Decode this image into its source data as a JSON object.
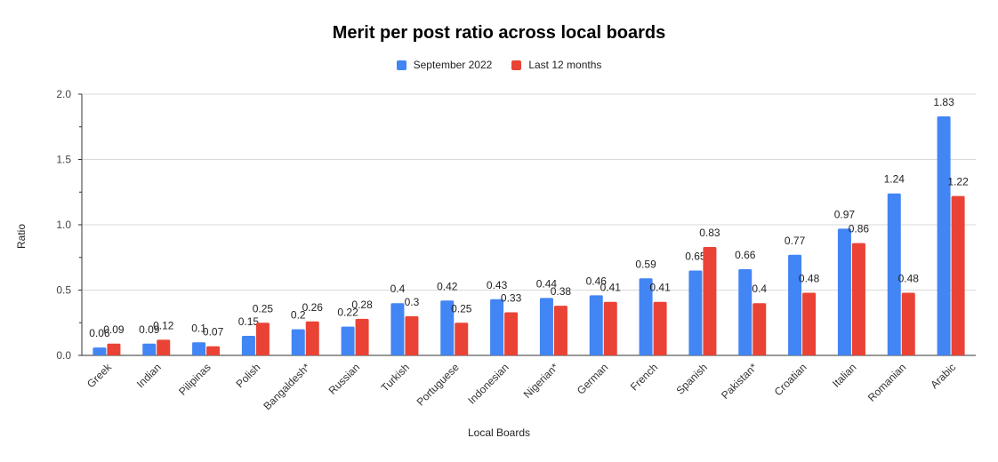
{
  "chart_data": {
    "type": "bar",
    "title": "Merit per post ratio across local boards",
    "xlabel": "Local Boards",
    "ylabel": "Ratio",
    "ylim": [
      0,
      2.0
    ],
    "yticks": [
      "0.0",
      "0.5",
      "1.0",
      "1.5",
      "2.0"
    ],
    "grid": true,
    "legend_position": "top",
    "categories": [
      "Greek",
      "Indian",
      "Pilipinas",
      "Polish",
      "Bangaldesh*",
      "Russian",
      "Turkish",
      "Portuguese",
      "Indonesian",
      "Nigerian*",
      "German",
      "French",
      "Spanish",
      "Pakistan*",
      "Croatian",
      "Italian",
      "Romanian",
      "Arabic"
    ],
    "series": [
      {
        "name": "September 2022",
        "color": "#4285f4",
        "values": [
          0.06,
          0.09,
          0.1,
          0.15,
          0.2,
          0.22,
          0.4,
          0.42,
          0.43,
          0.44,
          0.46,
          0.59,
          0.65,
          0.66,
          0.77,
          0.97,
          1.24,
          1.83
        ],
        "labels": [
          "0.06",
          "0.09",
          "0.1",
          "0.15",
          "0.2",
          "0.22",
          "0.4",
          "0.42",
          "0.43",
          "0.44",
          "0.46",
          "0.59",
          "0.65",
          "0.66",
          "0.77",
          "0.97",
          "1.24",
          "1.83"
        ]
      },
      {
        "name": "Last 12 months",
        "color": "#ea4335",
        "values": [
          0.09,
          0.12,
          0.07,
          0.25,
          0.26,
          0.28,
          0.3,
          0.25,
          0.33,
          0.38,
          0.41,
          0.41,
          0.83,
          0.4,
          0.48,
          0.86,
          0.48,
          1.22
        ],
        "labels": [
          "0.09",
          "0.12",
          "0.07",
          "0.25",
          "0.26",
          "0.28",
          "0.3",
          "0.25",
          "0.33",
          "0.38",
          "0.41",
          "0.41",
          "0.83",
          "0.4",
          "0.48",
          "0.86",
          "0.48",
          "1.22"
        ]
      }
    ]
  }
}
